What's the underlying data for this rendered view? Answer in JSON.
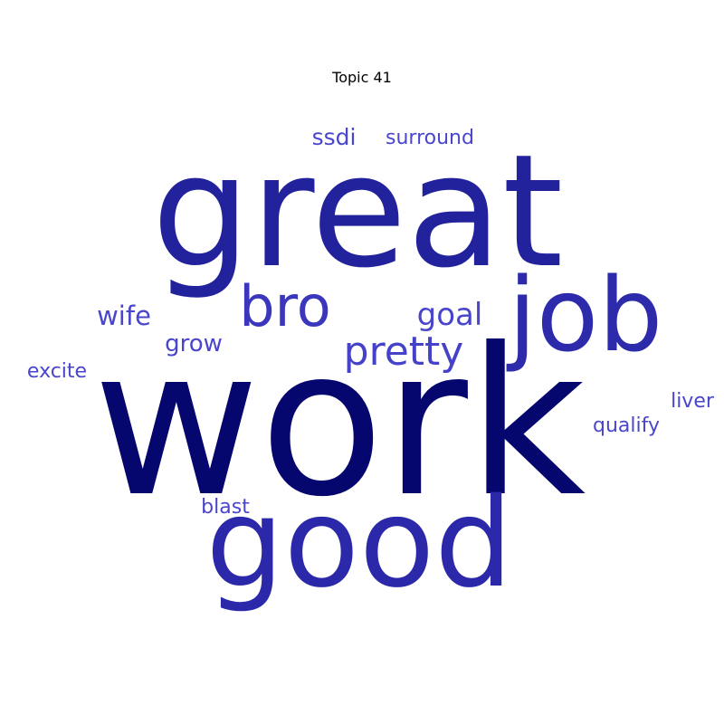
{
  "title": "Topic 41",
  "words": [
    {
      "text": "work",
      "color": "#06066f"
    },
    {
      "text": "great",
      "color": "#23229d"
    },
    {
      "text": "good",
      "color": "#2b29a9"
    },
    {
      "text": "job",
      "color": "#2d2bab"
    },
    {
      "text": "bro",
      "color": "#3a37bd"
    },
    {
      "text": "pretty",
      "color": "#4542c9"
    },
    {
      "text": "goal",
      "color": "#4946cc"
    },
    {
      "text": "wife",
      "color": "#4946cc"
    },
    {
      "text": "grow",
      "color": "#4946cc"
    },
    {
      "text": "ssdi",
      "color": "#4946cc"
    },
    {
      "text": "surround",
      "color": "#4946cc"
    },
    {
      "text": "excite",
      "color": "#4946cc"
    },
    {
      "text": "liver",
      "color": "#4946cc"
    },
    {
      "text": "qualify",
      "color": "#4946cc"
    },
    {
      "text": "blast",
      "color": "#4946cc"
    }
  ]
}
